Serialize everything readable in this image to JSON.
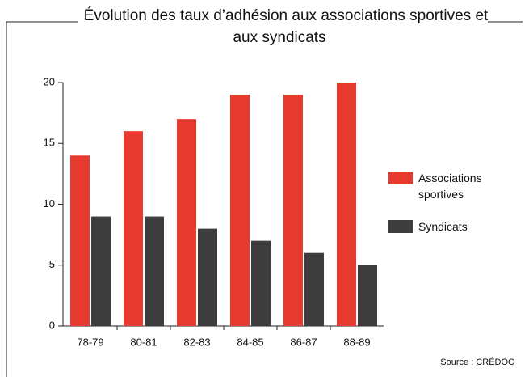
{
  "chart_data": {
    "type": "bar",
    "title": "Évolution des taux d’adhésion aux associations sportives et aux syndicats",
    "source": "Source : CRÉDOC",
    "categories": [
      "78-79",
      "80-81",
      "82-83",
      "84-85",
      "86-87",
      "88-89"
    ],
    "series": [
      {
        "name": "Associations sportives",
        "color": "#e8392f",
        "values": [
          14,
          16,
          17,
          19,
          19,
          20
        ]
      },
      {
        "name": "Syndicats",
        "color": "#3d3d3d",
        "values": [
          9,
          9,
          8,
          7,
          6,
          5
        ]
      }
    ],
    "ylim": [
      0,
      20
    ],
    "yticks": [
      0,
      5,
      10,
      15,
      20
    ],
    "grid": false,
    "legend": "right"
  }
}
